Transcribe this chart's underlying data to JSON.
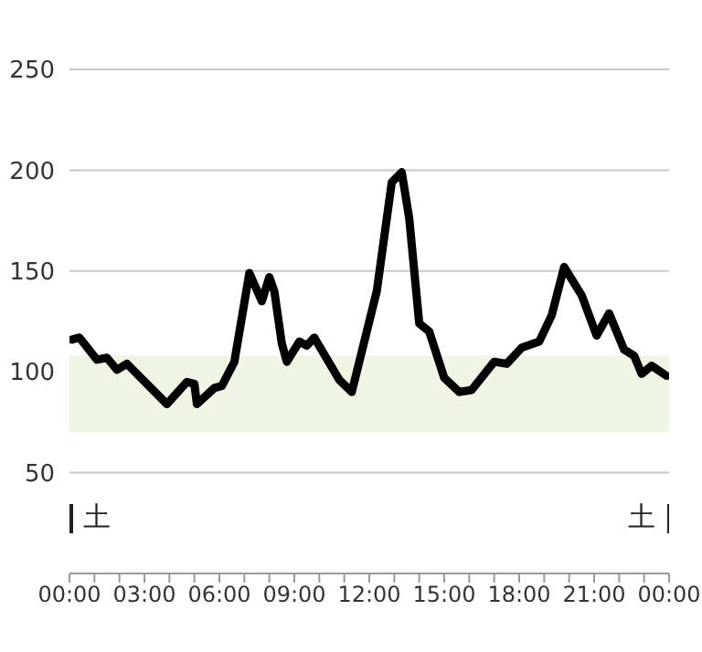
{
  "chart_data": {
    "type": "line",
    "x": [
      0.1,
      0.4,
      1.1,
      1.5,
      1.9,
      2.3,
      3.9,
      4.7,
      5.0,
      5.1,
      5.8,
      6.1,
      6.6,
      7.2,
      7.7,
      8.0,
      8.2,
      8.5,
      8.7,
      9.2,
      9.5,
      9.8,
      10.8,
      11.3,
      12.3,
      12.9,
      13.3,
      13.6,
      14.0,
      14.4,
      15.0,
      15.6,
      16.1,
      17.0,
      17.5,
      18.1,
      18.8,
      19.3,
      19.8,
      20.5,
      21.1,
      21.6,
      22.2,
      22.6,
      22.9,
      23.3,
      23.9
    ],
    "series": [
      {
        "color": "#000000",
        "values": [
          116,
          117,
          106,
          107,
          101,
          104,
          84,
          95,
          94,
          84,
          92,
          93,
          105,
          149,
          135,
          147,
          140,
          114,
          105,
          115,
          113,
          117,
          96,
          90,
          140,
          194,
          199,
          176,
          124,
          120,
          97,
          90,
          91,
          105,
          104,
          112,
          115,
          128,
          152,
          138,
          118,
          129,
          111,
          108,
          99,
          103,
          98
        ]
      }
    ],
    "xlim": [
      0,
      24
    ],
    "xticks": [
      {
        "value": 0,
        "label": "00:00"
      },
      {
        "value": 1,
        "label": null
      },
      {
        "value": 2,
        "label": null
      },
      {
        "value": 3,
        "label": "03:00"
      },
      {
        "value": 4,
        "label": null
      },
      {
        "value": 5,
        "label": null
      },
      {
        "value": 6,
        "label": "06:00"
      },
      {
        "value": 7,
        "label": null
      },
      {
        "value": 8,
        "label": null
      },
      {
        "value": 9,
        "label": "09:00"
      },
      {
        "value": 10,
        "label": null
      },
      {
        "value": 11,
        "label": null
      },
      {
        "value": 12,
        "label": "12:00"
      },
      {
        "value": 13,
        "label": null
      },
      {
        "value": 14,
        "label": null
      },
      {
        "value": 15,
        "label": "15:00"
      },
      {
        "value": 16,
        "label": null
      },
      {
        "value": 17,
        "label": null
      },
      {
        "value": 18,
        "label": "18:00"
      },
      {
        "value": 19,
        "label": null
      },
      {
        "value": 20,
        "label": null
      },
      {
        "value": 21,
        "label": "21:00"
      },
      {
        "value": 22,
        "label": null
      },
      {
        "value": 23,
        "label": null
      },
      {
        "value": 24,
        "label": "00:00"
      }
    ],
    "ylim": [
      0,
      250
    ],
    "yticks": [
      50,
      100,
      150,
      200,
      250
    ],
    "grid": "y",
    "bands": [
      {
        "axis": "y",
        "from": 70,
        "to": 108,
        "color": "#eef5e2"
      }
    ],
    "annotations": [
      "土",
      "土"
    ],
    "marker": "none",
    "line_style": "solid"
  }
}
